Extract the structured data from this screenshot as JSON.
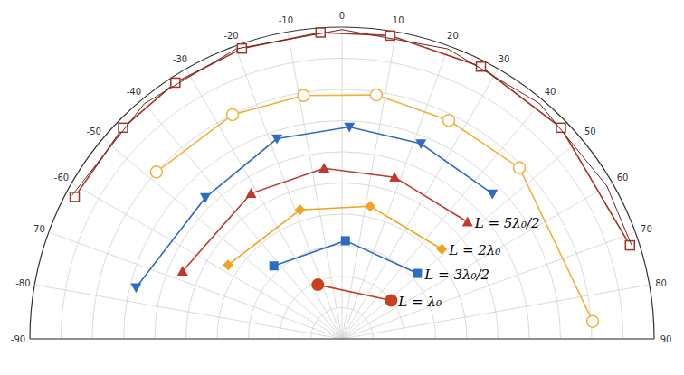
{
  "chart_data": {
    "type": "polar",
    "xlim": [
      -90,
      90
    ],
    "xticks": [
      -90,
      -80,
      -70,
      -60,
      -50,
      -40,
      -30,
      -20,
      -10,
      0,
      10,
      20,
      30,
      40,
      50,
      60,
      70,
      80,
      90
    ],
    "ylim": [
      0,
      10
    ],
    "yticks": [
      0,
      1,
      2,
      3,
      4,
      5,
      6,
      7,
      8,
      9,
      10
    ],
    "grid": true,
    "tick_labels": "x",
    "series": [
      {
        "name": "L = λ₀",
        "color": "#c8401e",
        "marker": "circle",
        "line_style": "solid",
        "x": [
          -24,
          52
        ],
        "values": [
          1.9,
          2.0
        ]
      },
      {
        "name": "L = 3λ₀/2",
        "color": "#2e6cc4",
        "marker": "square",
        "line_style": "solid",
        "x": [
          -43,
          2,
          49
        ],
        "values": [
          3.2,
          3.15,
          3.2
        ]
      },
      {
        "name": "L = 2λ₀",
        "color": "#f0a51e",
        "marker": "diamond",
        "line_style": "solid",
        "x": [
          -57,
          -18,
          12,
          48
        ],
        "values": [
          4.35,
          4.35,
          4.35,
          4.3
        ]
      },
      {
        "name": "L = 5λ₀/2",
        "color": "#c0392b",
        "marker": "triangle",
        "line_style": "solid",
        "x": [
          -67,
          -32,
          -6,
          18,
          47
        ],
        "values": [
          5.55,
          5.5,
          5.5,
          5.45,
          5.5
        ]
      },
      {
        "color": "#2e6cc4",
        "marker": "triangle-down",
        "line_style": "solid",
        "x": [
          -76,
          -44,
          -18,
          2,
          22,
          46
        ],
        "values": [
          6.8,
          6.3,
          6.75,
          6.8,
          6.75,
          6.7
        ]
      },
      {
        "color": "#f2b13a",
        "marker": "circle-open",
        "line_style": "solid",
        "x": [
          -48,
          -26,
          -9,
          8,
          26,
          46,
          86
        ],
        "values": [
          8.0,
          8.0,
          7.9,
          7.9,
          7.8,
          7.9,
          8.05
        ]
      },
      {
        "color": "#a8332a",
        "marker": "square-open",
        "line_style": "solid",
        "x": [
          -62,
          -46,
          -33,
          -19,
          -4,
          9,
          27,
          46,
          72
        ],
        "values": [
          9.7,
          9.75,
          9.8,
          9.85,
          9.85,
          9.85,
          9.8,
          9.75,
          9.7
        ]
      },
      {
        "color": "#6b2b22",
        "marker": "none",
        "line_style": "solid",
        "x": [
          -62,
          -40,
          -20,
          0,
          20,
          40,
          60,
          72
        ],
        "values": [
          9.8,
          9.85,
          9.9,
          9.92,
          9.9,
          9.85,
          9.8,
          9.75
        ]
      }
    ]
  }
}
